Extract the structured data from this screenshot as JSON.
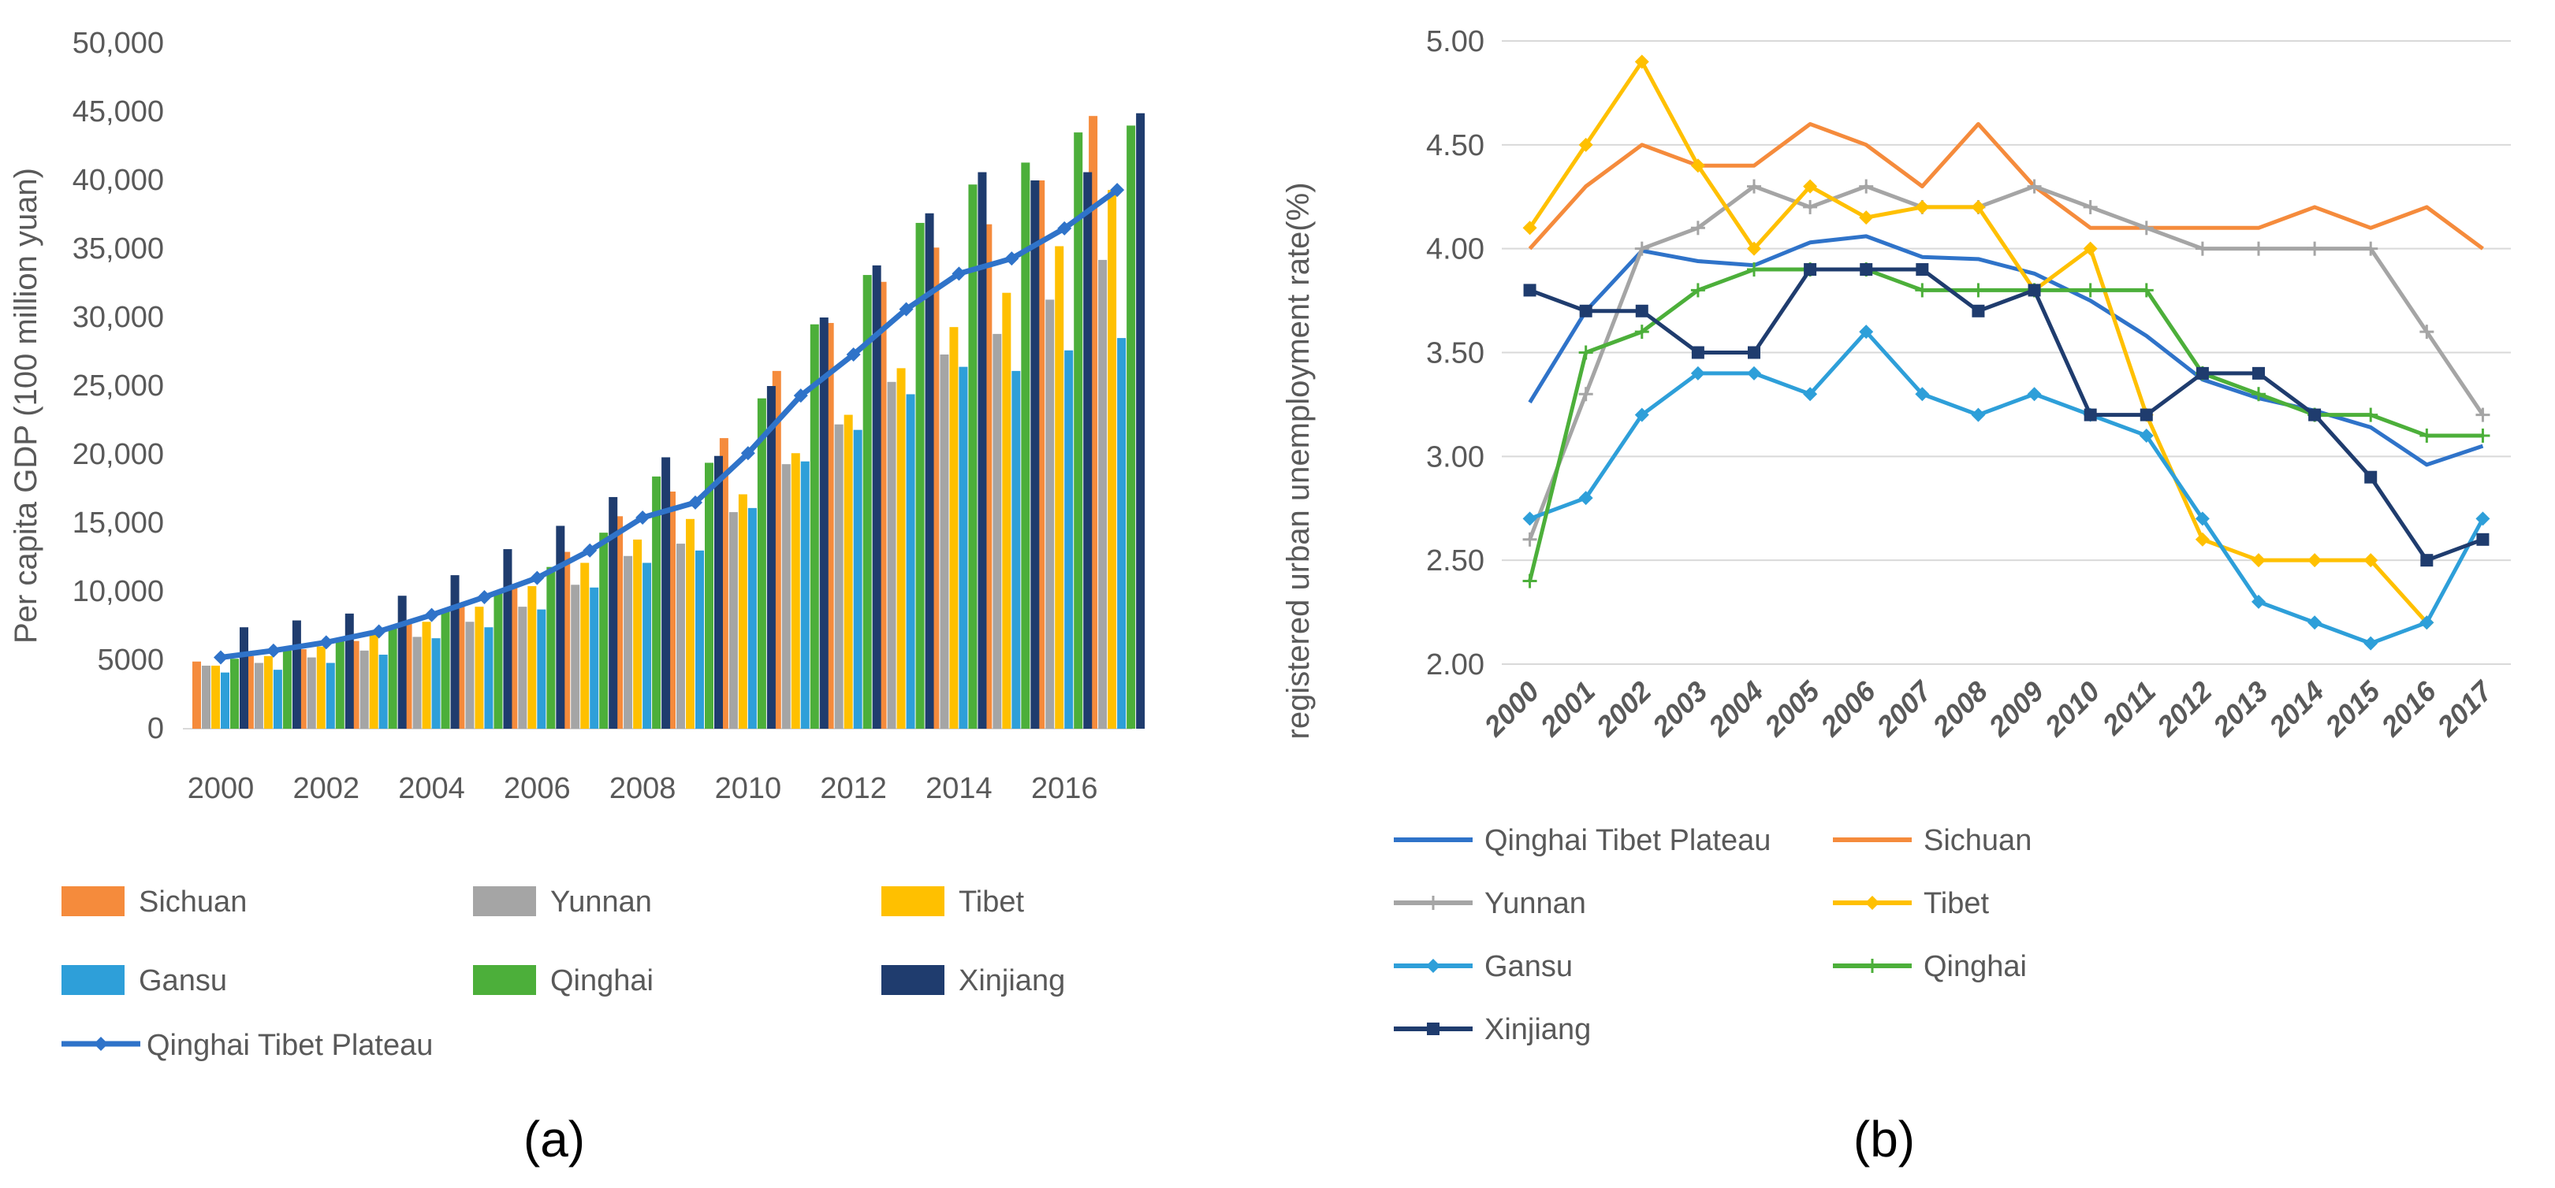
{
  "panels": [
    {
      "id": "a",
      "caption": "(a)",
      "chart_data": {
        "type": "bar",
        "title": "",
        "xlabel": "",
        "ylabel": "Per capita GDP (100 million yuan)",
        "ylim": [
          0,
          50000
        ],
        "yticks": [
          "0",
          "5000",
          "10,000",
          "15,000",
          "20,000",
          "25,000",
          "30,000",
          "35,000",
          "40,000",
          "45,000",
          "50,000"
        ],
        "ytick_values": [
          0,
          5000,
          10000,
          15000,
          20000,
          25000,
          30000,
          35000,
          40000,
          45000,
          50000
        ],
        "categories": [
          "2000",
          "2001",
          "2002",
          "2003",
          "2004",
          "2005",
          "2006",
          "2007",
          "2008",
          "2009",
          "2010",
          "2011",
          "2012",
          "2013",
          "2014",
          "2015",
          "2016",
          "2017"
        ],
        "xtick_labels": [
          "2000",
          "2002",
          "2004",
          "2006",
          "2008",
          "2010",
          "2012",
          "2014",
          "2016"
        ],
        "legend_position": "bottom",
        "series": [
          {
            "name": "Sichuan",
            "color": "#F58B3C",
            "values": [
              4900,
              5300,
              5800,
              6400,
              7700,
              9000,
              10500,
              12900,
              15500,
              17300,
              21200,
              26100,
              29600,
              32600,
              35100,
              36800,
              40000,
              44700
            ]
          },
          {
            "name": "Yunnan",
            "color": "#A5A5A5",
            "values": [
              4600,
              4800,
              5200,
              5700,
              6700,
              7800,
              8900,
              10500,
              12600,
              13500,
              15800,
              19300,
              22200,
              25300,
              27300,
              28800,
              31300,
              34200
            ]
          },
          {
            "name": "Tibet",
            "color": "#FFC000",
            "values": [
              4600,
              5300,
              6000,
              6900,
              7800,
              8900,
              10400,
              12100,
              13800,
              15300,
              17100,
              20100,
              22900,
              26300,
              29300,
              31800,
              35200,
              39300
            ]
          },
          {
            "name": "Gansu",
            "color": "#2E9FD9",
            "values": [
              4100,
              4300,
              4800,
              5400,
              6600,
              7400,
              8700,
              10300,
              12100,
              13000,
              16100,
              19500,
              21800,
              24400,
              26400,
              26100,
              27600,
              28500
            ]
          },
          {
            "name": "Qinghai",
            "color": "#4CAF3A",
            "values": [
              5100,
              5700,
              6400,
              7300,
              8600,
              9900,
              11800,
              14300,
              18400,
              19400,
              24100,
              29500,
              33100,
              36900,
              39700,
              41300,
              43500,
              44000
            ]
          },
          {
            "name": "Xinjiang",
            "color": "#1F3C6E",
            "values": [
              7400,
              7900,
              8400,
              9700,
              11200,
              13100,
              14800,
              16900,
              19800,
              19900,
              25000,
              30000,
              33800,
              37600,
              40600,
              40000,
              40600,
              44900
            ]
          }
        ],
        "line_series": {
          "name": "Qinghai Tibet Plateau",
          "color": "#2F73C9",
          "values": [
            5200,
            5700,
            6300,
            7100,
            8300,
            9600,
            11000,
            13000,
            15400,
            16500,
            20100,
            24300,
            27300,
            30600,
            33200,
            34300,
            36500,
            39300
          ]
        }
      }
    },
    {
      "id": "b",
      "caption": "(b)",
      "chart_data": {
        "type": "line",
        "title": "",
        "xlabel": "",
        "ylabel": "registered urban unemployment rate(%)",
        "ylim": [
          2.0,
          5.0
        ],
        "yticks": [
          "2.00",
          "2.50",
          "3.00",
          "3.50",
          "4.00",
          "4.50",
          "5.00"
        ],
        "ytick_values": [
          2.0,
          2.5,
          3.0,
          3.5,
          4.0,
          4.5,
          5.0
        ],
        "grid": true,
        "categories": [
          "2000",
          "2001",
          "2002",
          "2003",
          "2004",
          "2005",
          "2006",
          "2007",
          "2008",
          "2009",
          "2010",
          "2011",
          "2012",
          "2013",
          "2014",
          "2015",
          "2016",
          "2017"
        ],
        "legend_position": "bottom",
        "series": [
          {
            "name": "Qinghai Tibet Plateau",
            "color": "#2F73C9",
            "marker": "none",
            "values": [
              3.26,
              3.7,
              3.99,
              3.94,
              3.92,
              4.03,
              4.06,
              3.96,
              3.95,
              3.88,
              3.75,
              3.58,
              3.37,
              3.28,
              3.22,
              3.14,
              2.96,
              3.05
            ]
          },
          {
            "name": "Sichuan",
            "color": "#F58B3C",
            "marker": "none",
            "values": [
              4.0,
              4.3,
              4.5,
              4.4,
              4.4,
              4.6,
              4.5,
              4.3,
              4.6,
              4.3,
              4.1,
              4.1,
              4.1,
              4.1,
              4.2,
              4.1,
              4.2,
              4.0
            ]
          },
          {
            "name": "Yunnan",
            "color": "#A5A5A5",
            "marker": "plus",
            "values": [
              2.6,
              3.3,
              4.0,
              4.1,
              4.3,
              4.2,
              4.3,
              4.2,
              4.2,
              4.3,
              4.2,
              4.1,
              4.0,
              4.0,
              4.0,
              4.0,
              3.6,
              3.2
            ]
          },
          {
            "name": "Tibet",
            "color": "#FFC000",
            "marker": "diamond",
            "values": [
              4.1,
              4.5,
              4.9,
              4.4,
              4.0,
              4.3,
              4.15,
              4.2,
              4.2,
              3.8,
              4.0,
              3.2,
              2.6,
              2.5,
              2.5,
              2.5,
              2.2,
              null
            ]
          },
          {
            "name": "Gansu",
            "color": "#2E9FD9",
            "marker": "diamond",
            "values": [
              2.7,
              2.8,
              3.2,
              3.4,
              3.4,
              3.3,
              3.6,
              3.3,
              3.2,
              3.3,
              3.2,
              3.1,
              2.7,
              2.3,
              2.2,
              2.1,
              2.2,
              2.7
            ]
          },
          {
            "name": "Qinghai",
            "color": "#4CAF3A",
            "marker": "plus",
            "values": [
              2.4,
              3.5,
              3.6,
              3.8,
              3.9,
              3.9,
              3.9,
              3.8,
              3.8,
              3.8,
              3.8,
              3.8,
              3.4,
              3.3,
              3.2,
              3.2,
              3.1,
              3.1
            ]
          },
          {
            "name": "Xinjiang",
            "color": "#1F3C6E",
            "marker": "square",
            "values": [
              3.8,
              3.7,
              3.7,
              3.5,
              3.5,
              3.9,
              3.9,
              3.9,
              3.7,
              3.8,
              3.2,
              3.2,
              3.4,
              3.4,
              3.2,
              2.9,
              2.5,
              2.6
            ]
          }
        ]
      }
    }
  ]
}
